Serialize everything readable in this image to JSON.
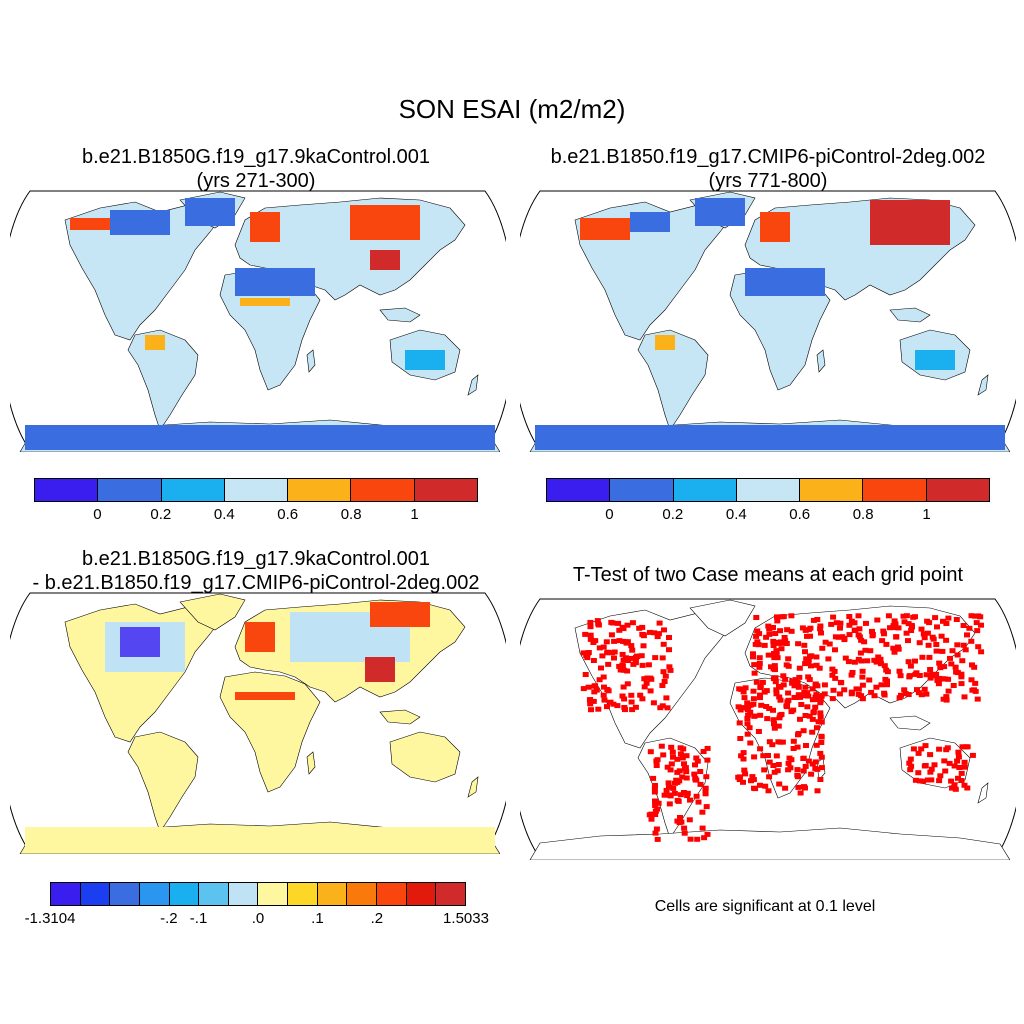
{
  "title": "SON ESAI (m2/m2)",
  "panels": [
    {
      "title_line1": "b.e21.B1850G.f19_g17.9kaControl.001",
      "title_line2": "(yrs 271-300)"
    },
    {
      "title_line1": "b.e21.B1850.f19_g17.CMIP6-piControl-2deg.002",
      "title_line2": "(yrs 771-800)"
    },
    {
      "title_line1": "b.e21.B1850G.f19_g17.9kaControl.001",
      "title_line2": "- b.e21.B1850.f19_g17.CMIP6-piControl-2deg.002"
    },
    {
      "title_line1": "T-Test of two Case means at each grid point"
    }
  ],
  "colorbar_abs": {
    "colors": [
      "#3a1ef0",
      "#3a6ee0",
      "#1ab0f0",
      "#c6e6f6",
      "#fbb21a",
      "#f8460e",
      "#d12a2a"
    ],
    "labels": [
      "0",
      "0.2",
      "0.4",
      "0.6",
      "0.8",
      "1"
    ]
  },
  "colorbar_diff": {
    "colors": [
      "#3a1ef0",
      "#1b3ef0",
      "#3a6ee0",
      "#2a96f0",
      "#1ab0f0",
      "#5cc3f0",
      "#bfe3f5",
      "#fff6a0",
      "#fcd728",
      "#fbb21a",
      "#f97a0a",
      "#f8460e",
      "#e11a0c",
      "#d12a2a"
    ],
    "labels": [
      "-1.3104",
      "-.2",
      "-.1",
      ".0",
      ".1",
      ".2",
      "1.5033"
    ]
  },
  "significance_note": "Cells are significant at 0.1 level",
  "ttest_color": "#ff0000"
}
